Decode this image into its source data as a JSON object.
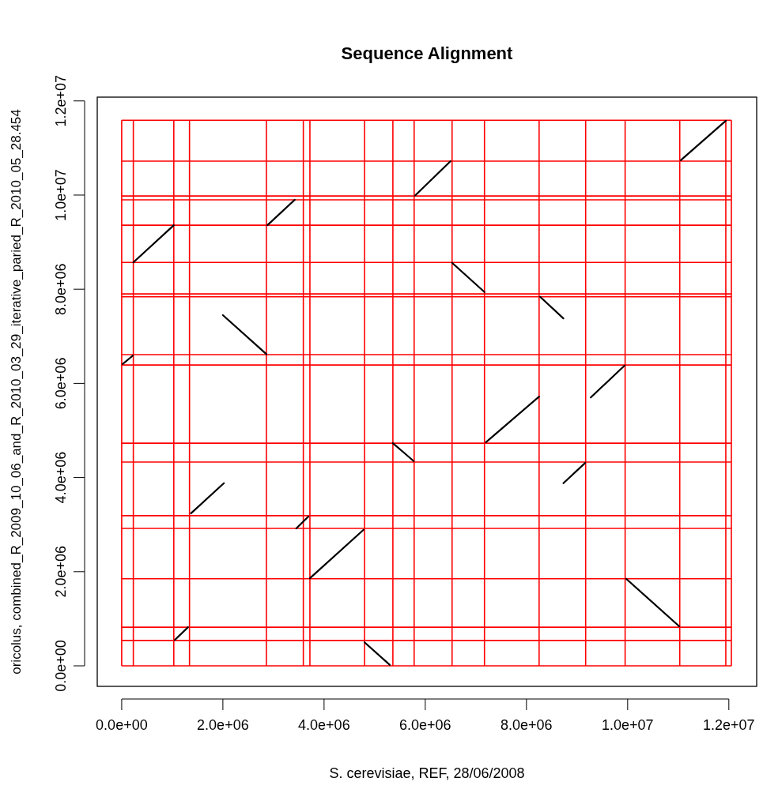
{
  "chart_data": {
    "type": "line",
    "title": "Sequence Alignment",
    "xlabel": "S. cerevisiae, REF, 28/06/2008",
    "ylabel": "oricolus, combined_R_2009_10_06_and_R_2010_03_29_iterative_paried_R_2010_05_28.454",
    "xlim": [
      -483000,
      12550000
    ],
    "ylim": [
      -436000,
      12080000
    ],
    "xticks": [
      {
        "value": 0,
        "label": "0.0e+00"
      },
      {
        "value": 2000000,
        "label": "2.0e+06"
      },
      {
        "value": 4000000,
        "label": "4.0e+06"
      },
      {
        "value": 6000000,
        "label": "6.0e+06"
      },
      {
        "value": 8000000,
        "label": "8.0e+06"
      },
      {
        "value": 10000000,
        "label": "1.0e+07"
      },
      {
        "value": 12000000,
        "label": "1.2e+07"
      }
    ],
    "yticks": [
      {
        "value": 0,
        "label": "0.0e+00"
      },
      {
        "value": 2000000,
        "label": "2.0e+06"
      },
      {
        "value": 4000000,
        "label": "4.0e+06"
      },
      {
        "value": 6000000,
        "label": "6.0e+06"
      },
      {
        "value": 8000000,
        "label": "8.0e+06"
      },
      {
        "value": 10000000,
        "label": "1.0e+07"
      },
      {
        "value": 12000000,
        "label": "1.2e+07"
      }
    ],
    "grid": false,
    "marker": "none",
    "line_style": "solid",
    "series": [
      {
        "color": "#000000",
        "x": [
          20000,
          220000
        ],
        "values": [
          6410000,
          6590000
        ]
      },
      {
        "color": "#000000",
        "x": [
          230000,
          1030000
        ],
        "values": [
          8570000,
          9360000
        ]
      },
      {
        "color": "#000000",
        "x": [
          1050000,
          1310000
        ],
        "values": [
          550000,
          820000
        ]
      },
      {
        "color": "#000000",
        "x": [
          1370000,
          2020000
        ],
        "values": [
          3240000,
          3880000
        ]
      },
      {
        "color": "#000000",
        "x": [
          2000000,
          2860000
        ],
        "values": [
          7450000,
          6620000
        ]
      },
      {
        "color": "#000000",
        "x": [
          2880000,
          3420000
        ],
        "values": [
          9360000,
          9900000
        ]
      },
      {
        "color": "#000000",
        "x": [
          3450000,
          3690000
        ],
        "values": [
          2920000,
          3170000
        ]
      },
      {
        "color": "#000000",
        "x": [
          3720000,
          4780000
        ],
        "values": [
          1860000,
          2890000
        ]
      },
      {
        "color": "#000000",
        "x": [
          4800000,
          5300000
        ],
        "values": [
          500000,
          20000
        ]
      },
      {
        "color": "#000000",
        "x": [
          5360000,
          5770000
        ],
        "values": [
          4730000,
          4350000
        ]
      },
      {
        "color": "#000000",
        "x": [
          5800000,
          6500000
        ],
        "values": [
          9990000,
          10720000
        ]
      },
      {
        "color": "#000000",
        "x": [
          6530000,
          7170000
        ],
        "values": [
          8560000,
          7940000
        ]
      },
      {
        "color": "#000000",
        "x": [
          7200000,
          8250000
        ],
        "values": [
          4750000,
          5720000
        ]
      },
      {
        "color": "#000000",
        "x": [
          8270000,
          8730000
        ],
        "values": [
          7840000,
          7380000
        ]
      },
      {
        "color": "#000000",
        "x": [
          8730000,
          9160000
        ],
        "values": [
          3880000,
          4310000
        ]
      },
      {
        "color": "#000000",
        "x": [
          9270000,
          9940000
        ],
        "values": [
          5700000,
          6380000
        ]
      },
      {
        "color": "#000000",
        "x": [
          9970000,
          11020000
        ],
        "values": [
          1850000,
          840000
        ]
      },
      {
        "color": "#000000",
        "x": [
          11050000,
          11940000
        ],
        "values": [
          10740000,
          11580000
        ]
      }
    ],
    "ref_lines": [
      {
        "axis": "x",
        "value": 0,
        "color": "#ff0000"
      },
      {
        "axis": "x",
        "value": 230000,
        "color": "#ff0000"
      },
      {
        "axis": "x",
        "value": 1030000,
        "color": "#ff0000"
      },
      {
        "axis": "x",
        "value": 1340000,
        "color": "#ff0000"
      },
      {
        "axis": "x",
        "value": 2860000,
        "color": "#ff0000"
      },
      {
        "axis": "x",
        "value": 3590000,
        "color": "#ff0000"
      },
      {
        "axis": "x",
        "value": 3720000,
        "color": "#ff0000"
      },
      {
        "axis": "x",
        "value": 4800000,
        "color": "#ff0000"
      },
      {
        "axis": "x",
        "value": 5360000,
        "color": "#ff0000"
      },
      {
        "axis": "x",
        "value": 5780000,
        "color": "#ff0000"
      },
      {
        "axis": "x",
        "value": 6530000,
        "color": "#ff0000"
      },
      {
        "axis": "x",
        "value": 7170000,
        "color": "#ff0000"
      },
      {
        "axis": "x",
        "value": 8250000,
        "color": "#ff0000"
      },
      {
        "axis": "x",
        "value": 9170000,
        "color": "#ff0000"
      },
      {
        "axis": "x",
        "value": 9950000,
        "color": "#ff0000"
      },
      {
        "axis": "x",
        "value": 11030000,
        "color": "#ff0000"
      },
      {
        "axis": "x",
        "value": 11940000,
        "color": "#ff0000"
      },
      {
        "axis": "x",
        "value": 12050000,
        "color": "#ff0000"
      },
      {
        "axis": "y",
        "value": 0,
        "color": "#ff0000"
      },
      {
        "axis": "y",
        "value": 540000,
        "color": "#ff0000"
      },
      {
        "axis": "y",
        "value": 820000,
        "color": "#ff0000"
      },
      {
        "axis": "y",
        "value": 1850000,
        "color": "#ff0000"
      },
      {
        "axis": "y",
        "value": 2920000,
        "color": "#ff0000"
      },
      {
        "axis": "y",
        "value": 3190000,
        "color": "#ff0000"
      },
      {
        "axis": "y",
        "value": 4330000,
        "color": "#ff0000"
      },
      {
        "axis": "y",
        "value": 4730000,
        "color": "#ff0000"
      },
      {
        "axis": "y",
        "value": 6390000,
        "color": "#ff0000"
      },
      {
        "axis": "y",
        "value": 6610000,
        "color": "#ff0000"
      },
      {
        "axis": "y",
        "value": 7840000,
        "color": "#ff0000"
      },
      {
        "axis": "y",
        "value": 7900000,
        "color": "#ff0000"
      },
      {
        "axis": "y",
        "value": 8570000,
        "color": "#ff0000"
      },
      {
        "axis": "y",
        "value": 9360000,
        "color": "#ff0000"
      },
      {
        "axis": "y",
        "value": 9900000,
        "color": "#ff0000"
      },
      {
        "axis": "y",
        "value": 9980000,
        "color": "#ff0000"
      },
      {
        "axis": "y",
        "value": 10720000,
        "color": "#ff0000"
      },
      {
        "axis": "y",
        "value": 11590000,
        "color": "#ff0000"
      }
    ]
  }
}
